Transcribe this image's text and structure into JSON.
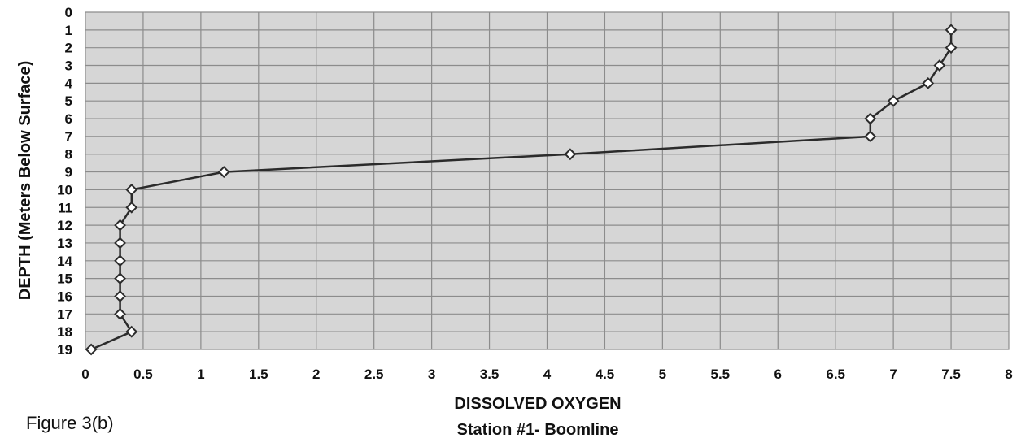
{
  "figure_caption": "Figure 3(b)",
  "chart_data": {
    "type": "line",
    "xlabel": "DISSOLVED OXYGEN",
    "subtitle": "Station #1- Boomline",
    "ylabel": "DEPTH (Meters Below Surface)",
    "xlim": [
      0,
      8
    ],
    "ylim": [
      0,
      19
    ],
    "y_inverted": true,
    "grid": true,
    "x_ticks": [
      "0",
      "0.5",
      "1",
      "1.5",
      "2",
      "2.5",
      "3",
      "3.5",
      "4",
      "4.5",
      "5",
      "5.5",
      "6",
      "6.5",
      "7",
      "7.5",
      "8"
    ],
    "y_ticks": [
      "0",
      "1",
      "2",
      "3",
      "4",
      "5",
      "6",
      "7",
      "8",
      "9",
      "10",
      "11",
      "12",
      "13",
      "14",
      "15",
      "16",
      "17",
      "18",
      "19"
    ],
    "series": [
      {
        "marker": "diamond",
        "points": [
          {
            "x": 7.5,
            "y": 1
          },
          {
            "x": 7.5,
            "y": 2
          },
          {
            "x": 7.4,
            "y": 3
          },
          {
            "x": 7.3,
            "y": 4
          },
          {
            "x": 7.0,
            "y": 5
          },
          {
            "x": 6.8,
            "y": 6
          },
          {
            "x": 6.8,
            "y": 7
          },
          {
            "x": 4.2,
            "y": 8
          },
          {
            "x": 1.2,
            "y": 9
          },
          {
            "x": 0.4,
            "y": 10
          },
          {
            "x": 0.4,
            "y": 11
          },
          {
            "x": 0.3,
            "y": 12
          },
          {
            "x": 0.3,
            "y": 13
          },
          {
            "x": 0.3,
            "y": 14
          },
          {
            "x": 0.3,
            "y": 15
          },
          {
            "x": 0.3,
            "y": 16
          },
          {
            "x": 0.3,
            "y": 17
          },
          {
            "x": 0.4,
            "y": 18
          },
          {
            "x": 0.05,
            "y": 19
          }
        ]
      }
    ],
    "colors": {
      "plot_background": "#d6d6d6",
      "grid": "#8c8c8c",
      "line": "#2b2b2b",
      "marker_fill": "#ffffff",
      "text": "#111111"
    }
  }
}
